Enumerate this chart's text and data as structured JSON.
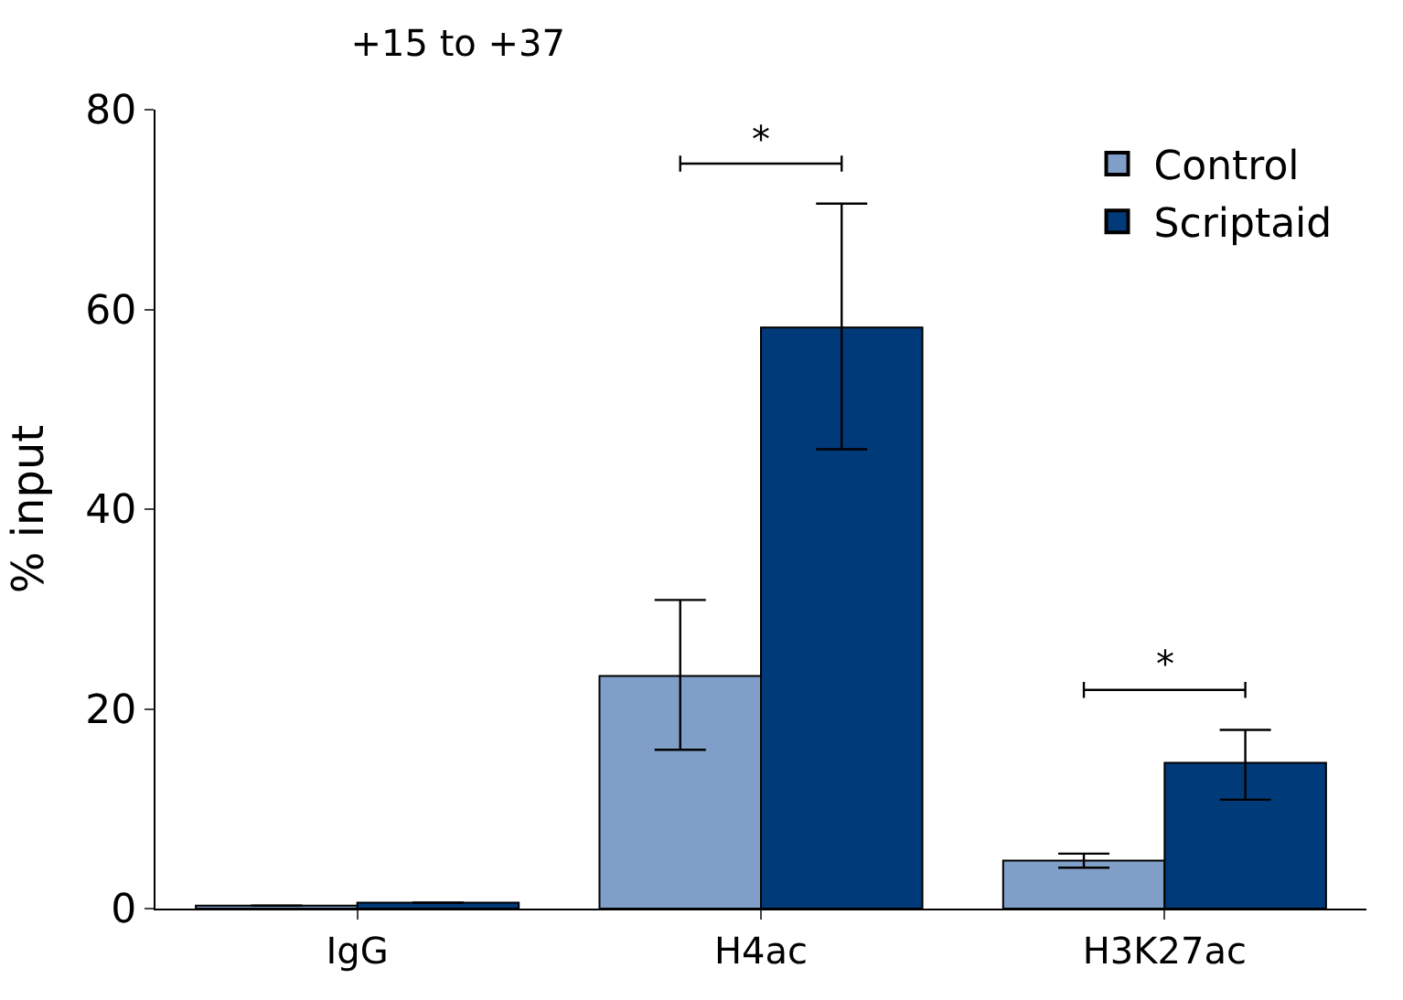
{
  "chart_data": {
    "type": "bar",
    "title": "+15 to +37",
    "ylabel": "% input",
    "categories": [
      "IgG",
      "H4ac",
      "H3K27ac"
    ],
    "series": [
      {
        "name": "Control",
        "color": "#7f9fc8",
        "values": [
          0.3,
          23.3,
          4.8
        ],
        "errors": [
          null,
          [
            15.9,
            30.9
          ],
          [
            4.1,
            5.5
          ]
        ]
      },
      {
        "name": "Scriptaid",
        "color": "#003a78",
        "values": [
          0.6,
          58.2,
          14.6
        ],
        "errors": [
          null,
          [
            46.0,
            70.6
          ],
          [
            10.9,
            17.9
          ]
        ]
      }
    ],
    "ylim": [
      0,
      80
    ],
    "yticks": [
      0,
      20,
      40,
      60,
      80
    ],
    "legend": "top right",
    "annotations": [
      "*",
      "*"
    ]
  }
}
